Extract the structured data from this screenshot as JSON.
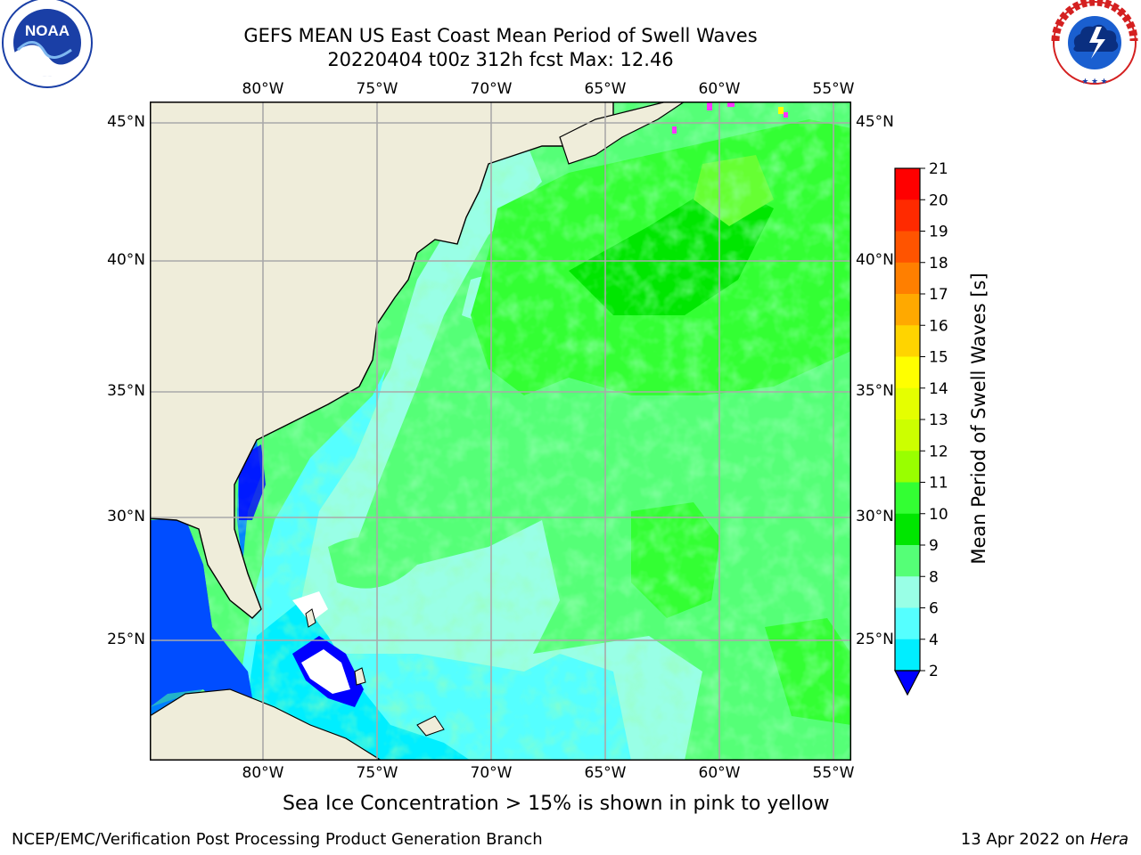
{
  "title": {
    "line1": "GEFS MEAN US East Coast Mean Period of Swell Waves",
    "line2": "20220404 t00z 312h fcst   Max: 12.46"
  },
  "map": {
    "lon_ticks": [
      "80°W",
      "75°W",
      "70°W",
      "65°W",
      "60°W",
      "55°W"
    ],
    "lat_ticks": [
      "45°N",
      "40°N",
      "35°N",
      "30°N",
      "25°N"
    ],
    "colors": {
      "land": "#efedda",
      "gridline": "#a9a9a9",
      "coast": "#000000"
    }
  },
  "colorbar": {
    "label": "Mean Period of Swell Waves [s]",
    "ticks": [
      "21",
      "20",
      "19",
      "18",
      "17",
      "16",
      "15",
      "14",
      "13",
      "12",
      "11",
      "10",
      "9",
      "8",
      "6",
      "4",
      "2"
    ],
    "colors": [
      "#ff0000",
      "#ff2a00",
      "#ff5400",
      "#ff7f00",
      "#ffa900",
      "#ffd400",
      "#ffff00",
      "#e5ff00",
      "#ccff00",
      "#99ff00",
      "#33ff33",
      "#00e600",
      "#55ff77",
      "#99ffe6",
      "#55ffff",
      "#00eeff",
      "#0080ff"
    ],
    "under_color": "#0000ff",
    "range": [
      2,
      21
    ]
  },
  "caption": "Sea Ice Concentration > 15% is shown in pink to yellow",
  "footer": {
    "left": "NCEP/EMC/Verification Post Processing Product Generation Branch",
    "date": "13 Apr 2022 on ",
    "machine": "Hera"
  },
  "logos": {
    "noaa": {
      "text": "NOAA",
      "color": "#1a3fa6"
    },
    "nws": {
      "ring_text": "NATIONAL WEATHER SERVICE",
      "color": "#d42020"
    }
  }
}
